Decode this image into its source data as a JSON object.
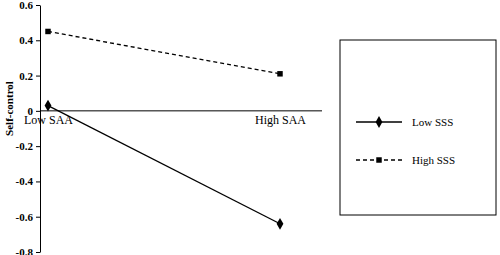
{
  "chart_data": {
    "type": "line",
    "y_label": "Self-control",
    "categories": [
      "Low SAA",
      "High SAA"
    ],
    "series": [
      {
        "name": "Low SSS",
        "color": "#000000",
        "marker": "diamond",
        "line_style": "solid",
        "values": [
          0.03,
          -0.64
        ]
      },
      {
        "name": "High SSS",
        "color": "#000000",
        "marker": "square",
        "line_style": "dashed",
        "values": [
          0.45,
          0.21
        ]
      }
    ],
    "ylim": [
      -0.8,
      0.6
    ],
    "yticks": [
      -0.8,
      -0.6,
      -0.4,
      -0.2,
      0,
      0.2,
      0.4,
      0.6
    ],
    "legend": "right",
    "grid": false
  }
}
